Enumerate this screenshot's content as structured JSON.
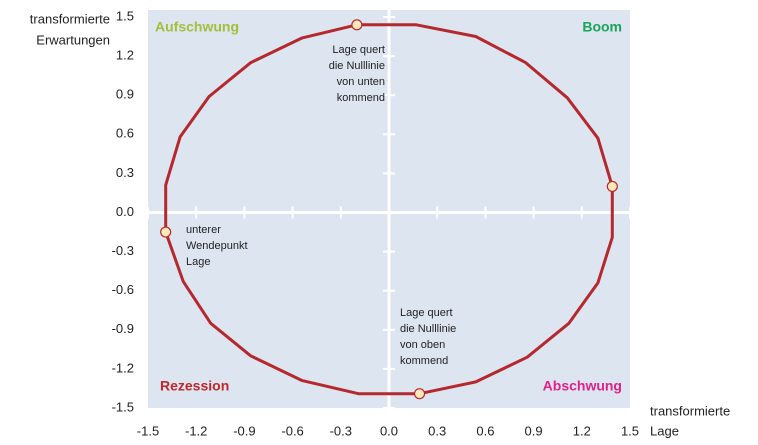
{
  "chart_data": {
    "type": "line",
    "closed": true,
    "color": "#b5282e",
    "x": [
      -0.2,
      0.17,
      0.54,
      0.85,
      1.11,
      1.3,
      1.39,
      1.39,
      1.3,
      1.12,
      0.86,
      0.54,
      0.19,
      -0.19,
      -0.54,
      -0.86,
      -1.11,
      -1.28,
      -1.39,
      -1.39,
      -1.3,
      -1.12,
      -0.86,
      -0.54
    ],
    "values": [
      1.44,
      1.44,
      1.35,
      1.15,
      0.88,
      0.57,
      0.2,
      -0.19,
      -0.54,
      -0.85,
      -1.11,
      -1.3,
      -1.39,
      -1.39,
      -1.29,
      -1.1,
      -0.85,
      -0.53,
      -0.15,
      0.21,
      0.58,
      0.89,
      1.15,
      1.34
    ],
    "markers": {
      "x": [
        -0.2,
        1.39,
        0.19,
        -1.39
      ],
      "values": [
        1.44,
        0.2,
        -1.39,
        -0.15
      ],
      "color": "#fde9b8"
    },
    "xlim": [
      -1.5,
      1.5
    ],
    "ylim": [
      -1.5,
      1.5
    ],
    "xticks": [
      -1.5,
      -1.2,
      -0.9,
      -0.6,
      -0.3,
      {
        "value": 0,
        "label": "0.0"
      },
      0.3,
      0.6,
      0.9,
      1.2,
      1.5
    ],
    "yticks": [
      -1.5,
      -1.2,
      -0.9,
      -0.6,
      -0.3,
      {
        "value": 0,
        "label": "0.0"
      },
      0.3,
      0.6,
      0.9,
      1.2,
      1.5
    ],
    "ylabel": [
      "transformierte",
      "Erwartungen"
    ],
    "xlabel": [
      "transformierte",
      "Lage"
    ],
    "quadrants": [
      {
        "text": "Aufschwung",
        "color": "#a3bf3c"
      },
      {
        "text": "Boom",
        "color": "#1ba35a"
      },
      {
        "text": "Rezession",
        "color": "#c0272d"
      },
      {
        "text": "Abschwung",
        "color": "#e0218a"
      }
    ],
    "annotations": [
      [
        "Lage quert",
        "die Nulllinie",
        "von unten",
        "kommend"
      ],
      [
        "unterer",
        "Wendepunkt",
        "Lage"
      ],
      [
        "Lage quert",
        "die Nulllinie",
        "von oben",
        "kommend"
      ]
    ]
  }
}
